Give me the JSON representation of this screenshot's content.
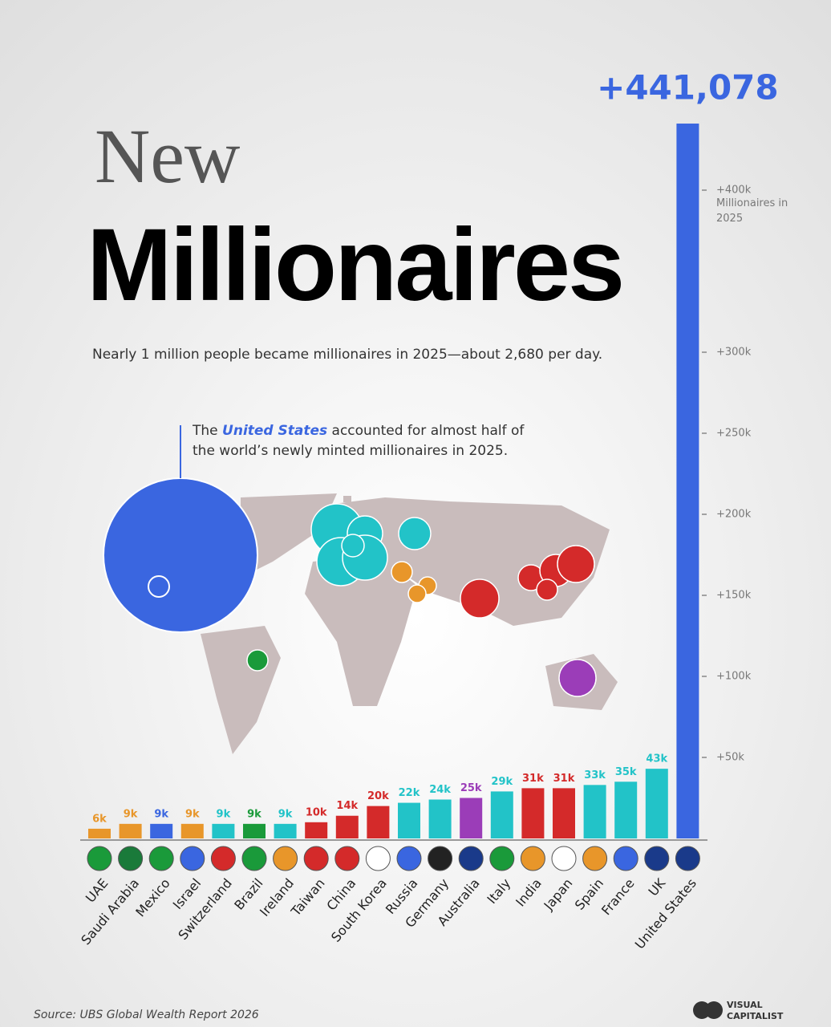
{
  "chart_data": {
    "type": "bar",
    "title_line1": "New",
    "title_line2": "Millionaires",
    "subtitle": "Nearly 1 million people became millionaires in 2025—about 2,680 per day.",
    "annotation": [
      "The ",
      "United States",
      " accounted for almost half of the world’s newly minted millionaires in 2025."
    ],
    "y_axis_label": "Millionaires in 2025",
    "source": "Source: UBS Global Wealth Report 2026",
    "brand": [
      "VISUAL",
      "CAPITALIST"
    ],
    "categories": [
      "UAE",
      "Saudi Arabia",
      "Mexico",
      "Israel",
      "Switzerland",
      "Brazil",
      "Ireland",
      "Taiwan",
      "China",
      "South Korea",
      "Russia",
      "Germany",
      "Australia",
      "Italy",
      "India",
      "Japan",
      "Spain",
      "France",
      "UK",
      "United States"
    ],
    "values": [
      6000,
      9000,
      9000,
      9000,
      9000,
      9000,
      9000,
      10000,
      14000,
      20000,
      22000,
      24000,
      25000,
      29000,
      31000,
      31000,
      33000,
      35000,
      43000,
      441078
    ],
    "value_labels": [
      "6k",
      "9k",
      "9k",
      "9k",
      "9k",
      "9k",
      "9k",
      "10k",
      "14k",
      "20k",
      "22k",
      "24k",
      "25k",
      "29k",
      "31k",
      "31k",
      "33k",
      "35k",
      "43k",
      "+441,078"
    ],
    "colors": [
      "#e8962a",
      "#e8962a",
      "#3a66e0",
      "#e8962a",
      "#22c3c8",
      "#1a9a3a",
      "#22c3c8",
      "#d42a2a",
      "#d42a2a",
      "#d42a2a",
      "#22c3c8",
      "#22c3c8",
      "#9b3db8",
      "#22c3c8",
      "#d42a2a",
      "#d42a2a",
      "#22c3c8",
      "#22c3c8",
      "#22c3c8",
      "#3a66e0"
    ],
    "ylim": [
      0,
      450000
    ],
    "yticks": [
      {
        "value": 50000,
        "label": "+50k"
      },
      {
        "value": 100000,
        "label": "+100k"
      },
      {
        "value": 150000,
        "label": "+150k"
      },
      {
        "value": 200000,
        "label": "+200k"
      },
      {
        "value": 250000,
        "label": "+250k"
      },
      {
        "value": 300000,
        "label": "+300k"
      },
      {
        "value": 400000,
        "label": "+400k"
      }
    ],
    "grid": false
  }
}
